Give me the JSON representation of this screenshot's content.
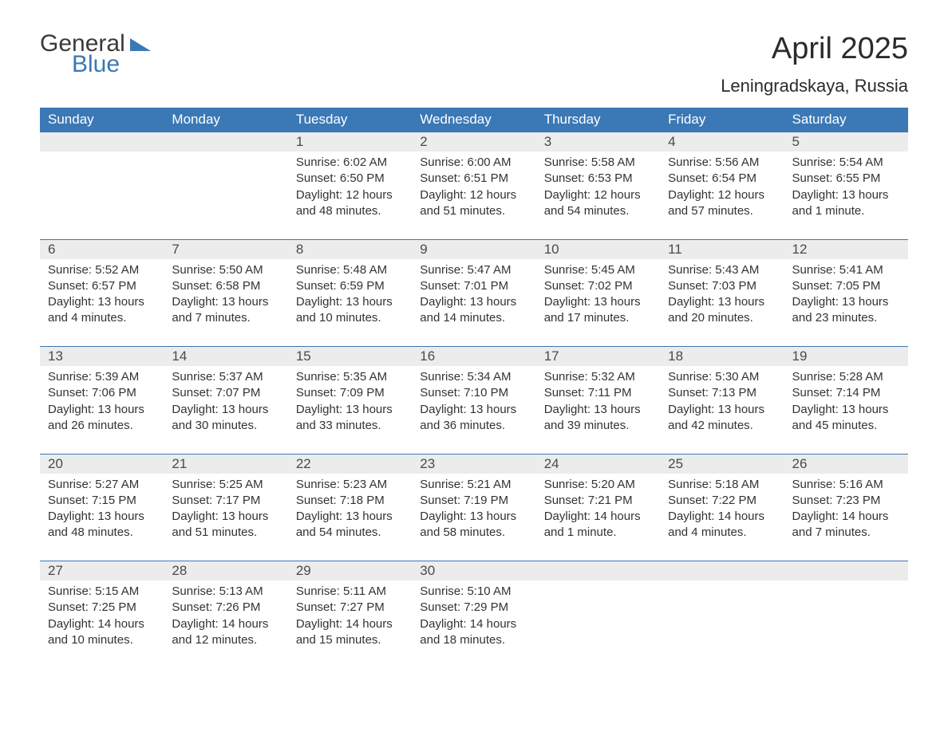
{
  "brand": {
    "word1": "General",
    "word2": "Blue",
    "word1_color": "#3a3a3a",
    "word2_color": "#3b78b6",
    "triangle_color": "#3b78b6"
  },
  "title": "April 2025",
  "subtitle": "Leningradskaya, Russia",
  "colors": {
    "header_bg": "#3b78b6",
    "header_text": "#ffffff",
    "daynum_bg": "#ececec",
    "daynum_border_top": "#3b78b6",
    "body_text": "#333333",
    "page_bg": "#ffffff"
  },
  "typography": {
    "title_fontsize": 38,
    "subtitle_fontsize": 22,
    "header_fontsize": 17,
    "daynum_fontsize": 17,
    "cell_fontsize": 15,
    "font_family": "Arial"
  },
  "day_headers": [
    "Sunday",
    "Monday",
    "Tuesday",
    "Wednesday",
    "Thursday",
    "Friday",
    "Saturday"
  ],
  "weeks": [
    {
      "nums": [
        "",
        "",
        "1",
        "2",
        "3",
        "4",
        "5"
      ],
      "cells": [
        {
          "lines": []
        },
        {
          "lines": []
        },
        {
          "lines": [
            "Sunrise: 6:02 AM",
            "Sunset: 6:50 PM",
            "Daylight: 12 hours and 48 minutes."
          ]
        },
        {
          "lines": [
            "Sunrise: 6:00 AM",
            "Sunset: 6:51 PM",
            "Daylight: 12 hours and 51 minutes."
          ]
        },
        {
          "lines": [
            "Sunrise: 5:58 AM",
            "Sunset: 6:53 PM",
            "Daylight: 12 hours and 54 minutes."
          ]
        },
        {
          "lines": [
            "Sunrise: 5:56 AM",
            "Sunset: 6:54 PM",
            "Daylight: 12 hours and 57 minutes."
          ]
        },
        {
          "lines": [
            "Sunrise: 5:54 AM",
            "Sunset: 6:55 PM",
            "Daylight: 13 hours and 1 minute."
          ]
        }
      ]
    },
    {
      "nums": [
        "6",
        "7",
        "8",
        "9",
        "10",
        "11",
        "12"
      ],
      "cells": [
        {
          "lines": [
            "Sunrise: 5:52 AM",
            "Sunset: 6:57 PM",
            "Daylight: 13 hours and 4 minutes."
          ]
        },
        {
          "lines": [
            "Sunrise: 5:50 AM",
            "Sunset: 6:58 PM",
            "Daylight: 13 hours and 7 minutes."
          ]
        },
        {
          "lines": [
            "Sunrise: 5:48 AM",
            "Sunset: 6:59 PM",
            "Daylight: 13 hours and 10 minutes."
          ]
        },
        {
          "lines": [
            "Sunrise: 5:47 AM",
            "Sunset: 7:01 PM",
            "Daylight: 13 hours and 14 minutes."
          ]
        },
        {
          "lines": [
            "Sunrise: 5:45 AM",
            "Sunset: 7:02 PM",
            "Daylight: 13 hours and 17 minutes."
          ]
        },
        {
          "lines": [
            "Sunrise: 5:43 AM",
            "Sunset: 7:03 PM",
            "Daylight: 13 hours and 20 minutes."
          ]
        },
        {
          "lines": [
            "Sunrise: 5:41 AM",
            "Sunset: 7:05 PM",
            "Daylight: 13 hours and 23 minutes."
          ]
        }
      ]
    },
    {
      "nums": [
        "13",
        "14",
        "15",
        "16",
        "17",
        "18",
        "19"
      ],
      "cells": [
        {
          "lines": [
            "Sunrise: 5:39 AM",
            "Sunset: 7:06 PM",
            "Daylight: 13 hours and 26 minutes."
          ]
        },
        {
          "lines": [
            "Sunrise: 5:37 AM",
            "Sunset: 7:07 PM",
            "Daylight: 13 hours and 30 minutes."
          ]
        },
        {
          "lines": [
            "Sunrise: 5:35 AM",
            "Sunset: 7:09 PM",
            "Daylight: 13 hours and 33 minutes."
          ]
        },
        {
          "lines": [
            "Sunrise: 5:34 AM",
            "Sunset: 7:10 PM",
            "Daylight: 13 hours and 36 minutes."
          ]
        },
        {
          "lines": [
            "Sunrise: 5:32 AM",
            "Sunset: 7:11 PM",
            "Daylight: 13 hours and 39 minutes."
          ]
        },
        {
          "lines": [
            "Sunrise: 5:30 AM",
            "Sunset: 7:13 PM",
            "Daylight: 13 hours and 42 minutes."
          ]
        },
        {
          "lines": [
            "Sunrise: 5:28 AM",
            "Sunset: 7:14 PM",
            "Daylight: 13 hours and 45 minutes."
          ]
        }
      ]
    },
    {
      "nums": [
        "20",
        "21",
        "22",
        "23",
        "24",
        "25",
        "26"
      ],
      "cells": [
        {
          "lines": [
            "Sunrise: 5:27 AM",
            "Sunset: 7:15 PM",
            "Daylight: 13 hours and 48 minutes."
          ]
        },
        {
          "lines": [
            "Sunrise: 5:25 AM",
            "Sunset: 7:17 PM",
            "Daylight: 13 hours and 51 minutes."
          ]
        },
        {
          "lines": [
            "Sunrise: 5:23 AM",
            "Sunset: 7:18 PM",
            "Daylight: 13 hours and 54 minutes."
          ]
        },
        {
          "lines": [
            "Sunrise: 5:21 AM",
            "Sunset: 7:19 PM",
            "Daylight: 13 hours and 58 minutes."
          ]
        },
        {
          "lines": [
            "Sunrise: 5:20 AM",
            "Sunset: 7:21 PM",
            "Daylight: 14 hours and 1 minute."
          ]
        },
        {
          "lines": [
            "Sunrise: 5:18 AM",
            "Sunset: 7:22 PM",
            "Daylight: 14 hours and 4 minutes."
          ]
        },
        {
          "lines": [
            "Sunrise: 5:16 AM",
            "Sunset: 7:23 PM",
            "Daylight: 14 hours and 7 minutes."
          ]
        }
      ]
    },
    {
      "nums": [
        "27",
        "28",
        "29",
        "30",
        "",
        "",
        ""
      ],
      "cells": [
        {
          "lines": [
            "Sunrise: 5:15 AM",
            "Sunset: 7:25 PM",
            "Daylight: 14 hours and 10 minutes."
          ]
        },
        {
          "lines": [
            "Sunrise: 5:13 AM",
            "Sunset: 7:26 PM",
            "Daylight: 14 hours and 12 minutes."
          ]
        },
        {
          "lines": [
            "Sunrise: 5:11 AM",
            "Sunset: 7:27 PM",
            "Daylight: 14 hours and 15 minutes."
          ]
        },
        {
          "lines": [
            "Sunrise: 5:10 AM",
            "Sunset: 7:29 PM",
            "Daylight: 14 hours and 18 minutes."
          ]
        },
        {
          "lines": []
        },
        {
          "lines": []
        },
        {
          "lines": []
        }
      ]
    }
  ]
}
